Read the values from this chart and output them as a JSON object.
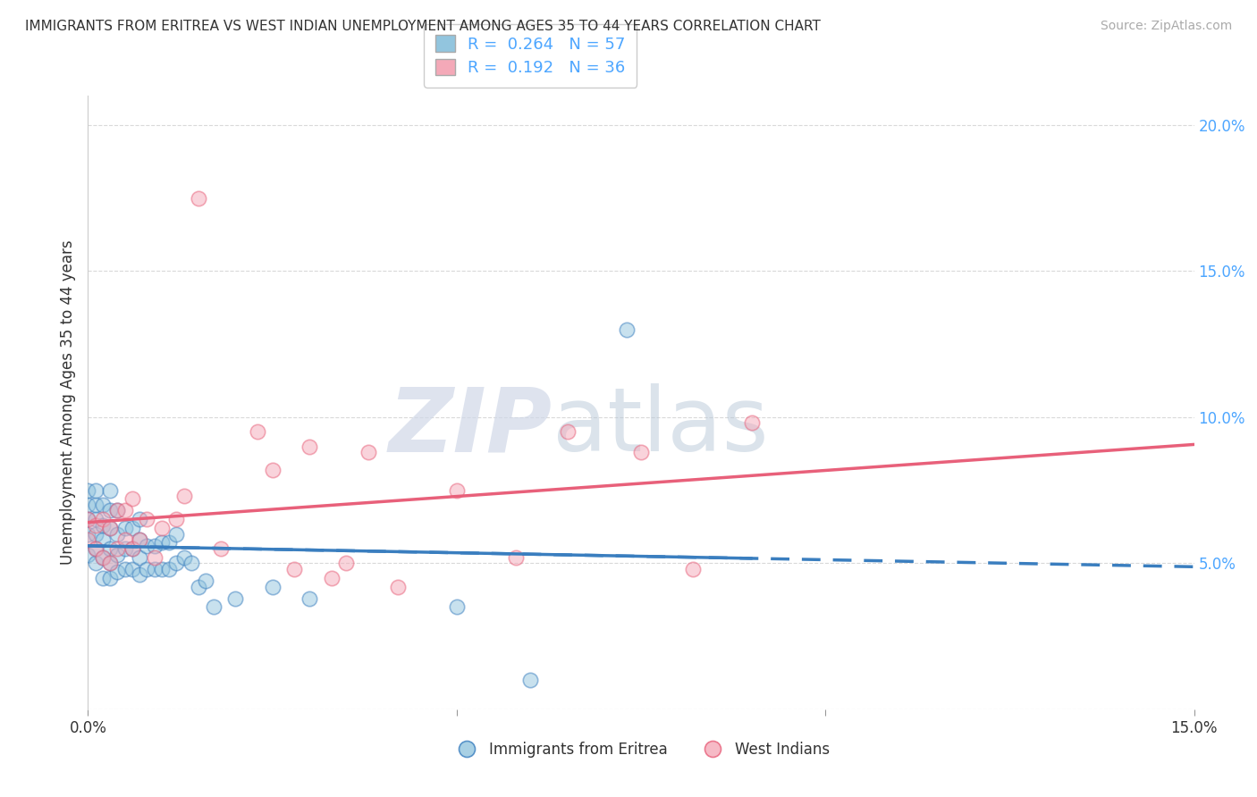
{
  "title": "IMMIGRANTS FROM ERITREA VS WEST INDIAN UNEMPLOYMENT AMONG AGES 35 TO 44 YEARS CORRELATION CHART",
  "source": "Source: ZipAtlas.com",
  "ylabel": "Unemployment Among Ages 35 to 44 years",
  "xlim": [
    0.0,
    0.15
  ],
  "ylim": [
    0.0,
    0.21
  ],
  "xticks": [
    0.0,
    0.05,
    0.1,
    0.15
  ],
  "xticklabels": [
    "0.0%",
    "",
    "",
    "15.0%"
  ],
  "yticks": [
    0.0,
    0.05,
    0.1,
    0.15,
    0.2
  ],
  "yticklabels": [
    "",
    "5.0%",
    "10.0%",
    "15.0%",
    "20.0%"
  ],
  "legend1_label": "Immigrants from Eritrea",
  "legend2_label": "West Indians",
  "R_eritrea": 0.264,
  "N_eritrea": 57,
  "R_westindian": 0.192,
  "N_westindian": 36,
  "eritrea_color": "#92c5de",
  "westindian_color": "#f4a9b8",
  "eritrea_line_color": "#3a7ebf",
  "westindian_line_color": "#e8607a",
  "eritrea_x": [
    0.0,
    0.0,
    0.0,
    0.0,
    0.0,
    0.001,
    0.001,
    0.001,
    0.001,
    0.001,
    0.001,
    0.002,
    0.002,
    0.002,
    0.002,
    0.002,
    0.003,
    0.003,
    0.003,
    0.003,
    0.003,
    0.003,
    0.004,
    0.004,
    0.004,
    0.004,
    0.005,
    0.005,
    0.005,
    0.006,
    0.006,
    0.006,
    0.007,
    0.007,
    0.007,
    0.007,
    0.008,
    0.008,
    0.009,
    0.009,
    0.01,
    0.01,
    0.011,
    0.011,
    0.012,
    0.012,
    0.013,
    0.014,
    0.015,
    0.016,
    0.017,
    0.02,
    0.025,
    0.03,
    0.05,
    0.06,
    0.073
  ],
  "eritrea_y": [
    0.053,
    0.06,
    0.065,
    0.07,
    0.075,
    0.05,
    0.055,
    0.06,
    0.065,
    0.07,
    0.075,
    0.045,
    0.052,
    0.058,
    0.063,
    0.07,
    0.045,
    0.05,
    0.055,
    0.062,
    0.068,
    0.075,
    0.047,
    0.053,
    0.06,
    0.068,
    0.048,
    0.055,
    0.062,
    0.048,
    0.055,
    0.062,
    0.046,
    0.052,
    0.058,
    0.065,
    0.048,
    0.056,
    0.048,
    0.056,
    0.048,
    0.057,
    0.048,
    0.057,
    0.05,
    0.06,
    0.052,
    0.05,
    0.042,
    0.044,
    0.035,
    0.038,
    0.042,
    0.038,
    0.035,
    0.01,
    0.13
  ],
  "westindian_x": [
    0.0,
    0.0,
    0.001,
    0.001,
    0.002,
    0.002,
    0.003,
    0.003,
    0.004,
    0.004,
    0.005,
    0.005,
    0.006,
    0.006,
    0.007,
    0.008,
    0.009,
    0.01,
    0.012,
    0.013,
    0.015,
    0.018,
    0.023,
    0.025,
    0.028,
    0.03,
    0.033,
    0.035,
    0.038,
    0.042,
    0.05,
    0.058,
    0.065,
    0.075,
    0.082,
    0.09
  ],
  "westindian_y": [
    0.058,
    0.065,
    0.055,
    0.063,
    0.052,
    0.065,
    0.05,
    0.062,
    0.055,
    0.068,
    0.058,
    0.068,
    0.055,
    0.072,
    0.058,
    0.065,
    0.052,
    0.062,
    0.065,
    0.073,
    0.175,
    0.055,
    0.095,
    0.082,
    0.048,
    0.09,
    0.045,
    0.05,
    0.088,
    0.042,
    0.075,
    0.052,
    0.095,
    0.088,
    0.048,
    0.098
  ],
  "watermark_zip": "ZIP",
  "watermark_atlas": "atlas",
  "background_color": "#ffffff",
  "grid_color": "#d9d9d9",
  "tick_color": "#4da6ff",
  "title_color": "#333333",
  "source_color": "#aaaaaa"
}
